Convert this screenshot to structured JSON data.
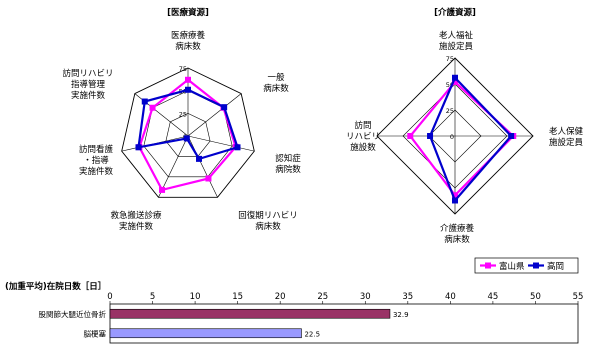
{
  "chart_data": [
    {
      "type": "radar",
      "title": "[医療資源]",
      "axes": [
        "医療療養\n病床数",
        "一般\n病床数",
        "認知症\n病院数",
        "回復期リハビリ\n病床数",
        "救急搬送診療\n実施件数",
        "訪問看護\n・指導\n実施件数",
        "訪問リハビリ\n指導管理\n実施件数"
      ],
      "ticks": [
        "0",
        "25",
        "50",
        "75"
      ],
      "rmax": 75,
      "series": [
        {
          "name": "富山県",
          "color": "#ff00ff",
          "values": [
            62,
            50,
            54,
            52,
            66,
            55,
            50
          ]
        },
        {
          "name": "高岡",
          "color": "#0000cc",
          "values": [
            51,
            51,
            56,
            28,
            3,
            56,
            61
          ]
        }
      ]
    },
    {
      "type": "radar",
      "title": "[介護資源]",
      "axes": [
        "老人福祉\n施設定員",
        "老人保健\n施設定員",
        "介護療養\n病床数",
        "訪問\nリハビリ\n施設数"
      ],
      "ticks": [
        "0",
        "25",
        "50",
        "75"
      ],
      "rmax": 75,
      "series": [
        {
          "name": "富山県",
          "color": "#ff00ff",
          "values": [
            52,
            56,
            57,
            43
          ]
        },
        {
          "name": "高岡",
          "color": "#0000cc",
          "values": [
            56,
            54,
            62,
            24
          ]
        }
      ]
    },
    {
      "type": "bar",
      "orientation": "horizontal",
      "title": "(加重平均)在院日数［日］",
      "categories": [
        "股関節大腿近位骨折",
        "脳梗塞"
      ],
      "values": [
        32.9,
        22.5
      ],
      "value_labels": [
        "32.9",
        "22.5"
      ],
      "colors": [
        "#993366",
        "#9999ff"
      ],
      "xlim": [
        0,
        55
      ],
      "ticks": [
        "0",
        "5",
        "10",
        "15",
        "20",
        "25",
        "30",
        "35",
        "40",
        "45",
        "50",
        "55"
      ]
    }
  ],
  "legend": [
    {
      "label": "富山県",
      "color": "#ff00ff"
    },
    {
      "label": "高岡",
      "color": "#0000cc"
    }
  ]
}
